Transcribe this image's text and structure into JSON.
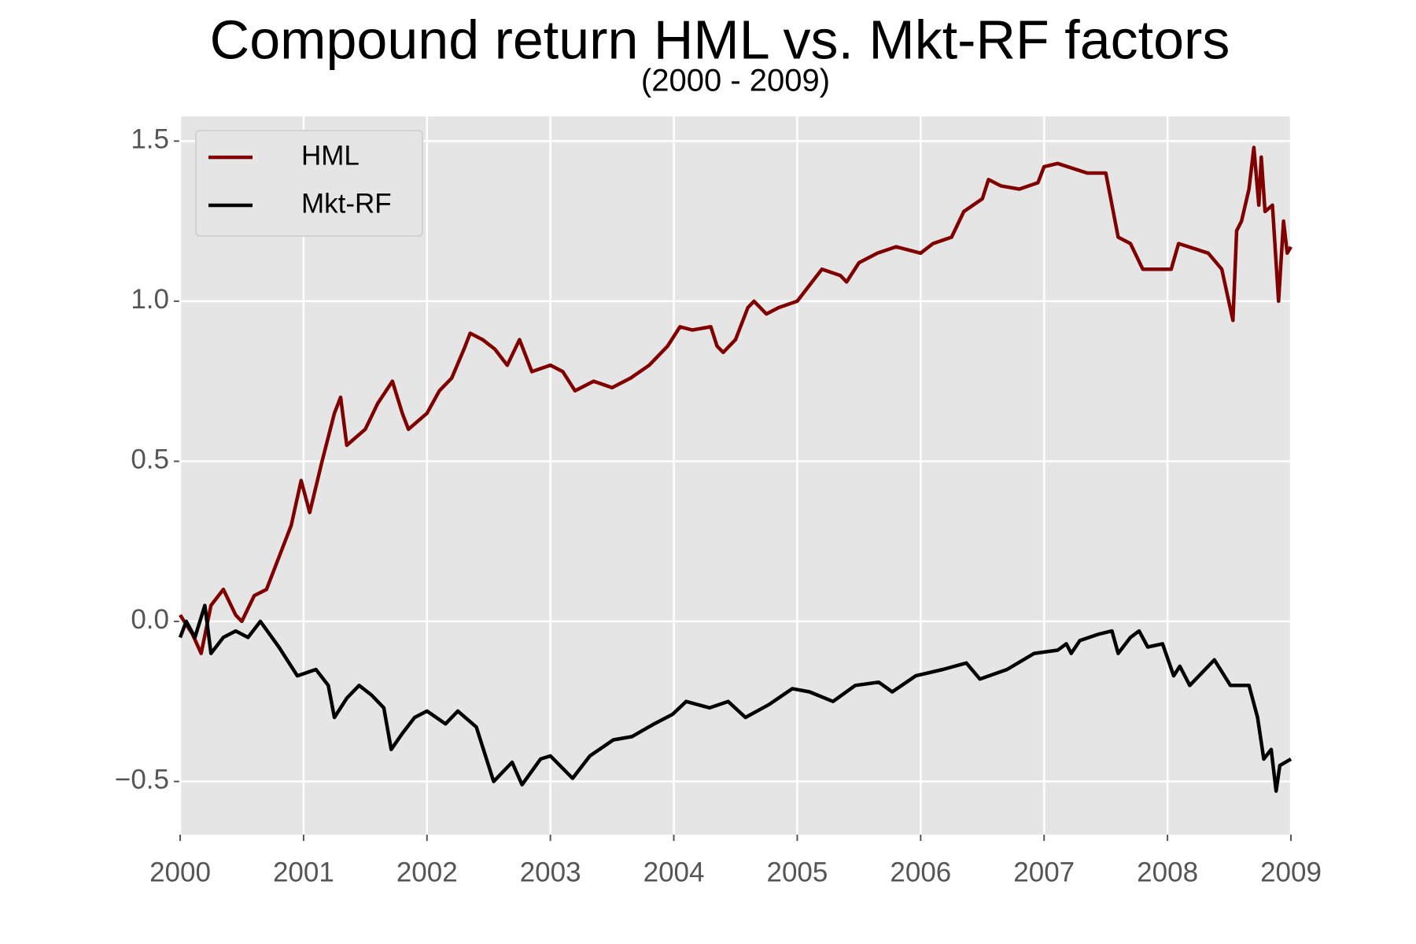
{
  "chart_data": {
    "type": "line",
    "title": "Compound return HML vs. Mkt-RF factors",
    "subtitle": "(2000 - 2009)",
    "xlim": [
      2000,
      2009
    ],
    "xticks": [
      2000,
      2001,
      2002,
      2003,
      2004,
      2005,
      2006,
      2007,
      2008,
      2009
    ],
    "ylim": [
      -0.666,
      1.577
    ],
    "yticks": [
      {
        "value": -0.5,
        "label": "−0.5"
      },
      {
        "value": 0,
        "label": "0.0"
      },
      0.5,
      {
        "value": 1,
        "label": "1.0"
      },
      1.5
    ],
    "grid": true,
    "legend": "upper left",
    "series": [
      {
        "name": "HML",
        "color": "#800000",
        "x": [
          2000,
          2000.1,
          2000.17,
          2000.25,
          2000.35,
          2000.45,
          2000.5,
          2000.6,
          2000.7,
          2000.8,
          2000.9,
          2000.98,
          2001.05,
          2001.15,
          2001.25,
          2001.3,
          2001.35,
          2001.5,
          2001.6,
          2001.72,
          2001.8,
          2001.85,
          2002.0,
          2002.1,
          2002.2,
          2002.3,
          2002.35,
          2002.45,
          2002.55,
          2002.65,
          2002.75,
          2002.85,
          2003.0,
          2003.1,
          2003.2,
          2003.35,
          2003.5,
          2003.65,
          2003.8,
          2003.95,
          2004.05,
          2004.15,
          2004.3,
          2004.35,
          2004.4,
          2004.5,
          2004.6,
          2004.65,
          2004.75,
          2004.85,
          2005.0,
          2005.1,
          2005.2,
          2005.35,
          2005.4,
          2005.5,
          2005.65,
          2005.8,
          2006.0,
          2006.1,
          2006.25,
          2006.35,
          2006.5,
          2006.55,
          2006.65,
          2006.8,
          2006.95,
          2007.0,
          2007.11,
          2007.35,
          2007.5,
          2007.6,
          2007.7,
          2007.8,
          2008.03,
          2008.09,
          2008.33,
          2008.44,
          2008.53,
          2008.56,
          2008.6,
          2008.66,
          2008.7,
          2008.74,
          2008.76,
          2008.79,
          2008.85,
          2008.9,
          2008.94,
          2008.97,
          2009.0
        ],
        "values": [
          0.02,
          -0.04,
          -0.1,
          0.05,
          0.1,
          0.02,
          0.0,
          0.08,
          0.1,
          0.2,
          0.3,
          0.44,
          0.34,
          0.5,
          0.65,
          0.7,
          0.55,
          0.6,
          0.68,
          0.75,
          0.65,
          0.6,
          0.65,
          0.72,
          0.76,
          0.85,
          0.9,
          0.88,
          0.85,
          0.8,
          0.88,
          0.78,
          0.8,
          0.78,
          0.72,
          0.75,
          0.73,
          0.76,
          0.8,
          0.86,
          0.92,
          0.91,
          0.92,
          0.86,
          0.84,
          0.88,
          0.98,
          1.0,
          0.96,
          0.98,
          1.0,
          1.05,
          1.1,
          1.08,
          1.06,
          1.12,
          1.15,
          1.17,
          1.15,
          1.18,
          1.2,
          1.28,
          1.32,
          1.38,
          1.36,
          1.35,
          1.37,
          1.42,
          1.43,
          1.4,
          1.4,
          1.2,
          1.18,
          1.1,
          1.1,
          1.18,
          1.15,
          1.1,
          0.94,
          1.22,
          1.25,
          1.35,
          1.48,
          1.3,
          1.45,
          1.28,
          1.3,
          1.0,
          1.25,
          1.15,
          1.17
        ]
      },
      {
        "name": "Mkt-RF",
        "color": "#000000",
        "x": [
          2000,
          2000.05,
          2000.12,
          2000.2,
          2000.25,
          2000.35,
          2000.45,
          2000.55,
          2000.65,
          2000.8,
          2000.95,
          2001.1,
          2001.2,
          2001.25,
          2001.35,
          2001.45,
          2001.55,
          2001.65,
          2001.71,
          2001.8,
          2001.9,
          2002.0,
          2002.15,
          2002.25,
          2002.4,
          2002.54,
          2002.69,
          2002.77,
          2002.92,
          2003.0,
          2003.18,
          2003.32,
          2003.51,
          2003.66,
          2003.84,
          2003.99,
          2004.1,
          2004.29,
          2004.44,
          2004.58,
          2004.77,
          2004.96,
          2005.1,
          2005.29,
          2005.47,
          2005.66,
          2005.77,
          2005.96,
          2006.18,
          2006.37,
          2006.48,
          2006.7,
          2006.92,
          2007.11,
          2007.18,
          2007.22,
          2007.29,
          2007.44,
          2007.55,
          2007.6,
          2007.7,
          2007.77,
          2007.84,
          2007.96,
          2008.05,
          2008.1,
          2008.18,
          2008.33,
          2008.38,
          2008.51,
          2008.66,
          2008.73,
          2008.78,
          2008.84,
          2008.88,
          2008.91,
          2009.0
        ],
        "values": [
          -0.05,
          0.0,
          -0.05,
          0.05,
          -0.1,
          -0.05,
          -0.03,
          -0.05,
          0.0,
          -0.08,
          -0.17,
          -0.15,
          -0.2,
          -0.3,
          -0.24,
          -0.2,
          -0.23,
          -0.27,
          -0.4,
          -0.35,
          -0.3,
          -0.28,
          -0.32,
          -0.28,
          -0.33,
          -0.5,
          -0.44,
          -0.51,
          -0.43,
          -0.42,
          -0.49,
          -0.42,
          -0.37,
          -0.36,
          -0.32,
          -0.29,
          -0.25,
          -0.27,
          -0.25,
          -0.3,
          -0.26,
          -0.21,
          -0.22,
          -0.25,
          -0.2,
          -0.19,
          -0.22,
          -0.17,
          -0.15,
          -0.13,
          -0.18,
          -0.15,
          -0.1,
          -0.09,
          -0.07,
          -0.1,
          -0.06,
          -0.04,
          -0.03,
          -0.1,
          -0.05,
          -0.03,
          -0.08,
          -0.07,
          -0.17,
          -0.14,
          -0.2,
          -0.14,
          -0.12,
          -0.2,
          -0.2,
          -0.3,
          -0.43,
          -0.4,
          -0.53,
          -0.45,
          -0.43
        ]
      }
    ]
  }
}
